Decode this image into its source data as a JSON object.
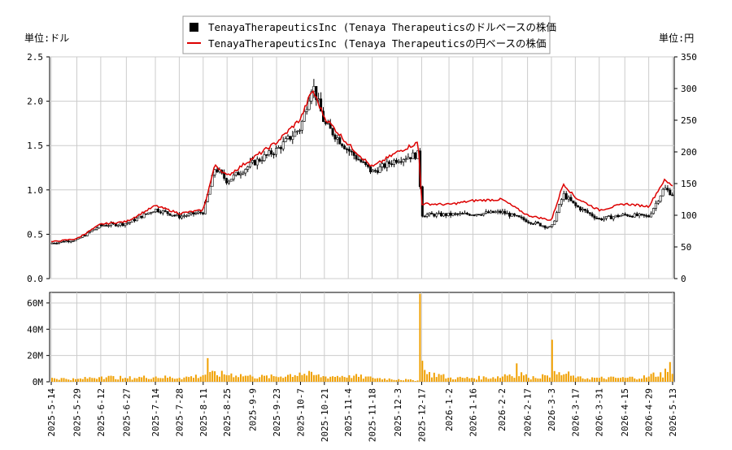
{
  "chart_data": [
    {
      "type": "candlestick",
      "title": "",
      "legend": {
        "placement": "top-center",
        "entries": [
          "TenayaTherapeuticsInc (Tenaya Therapeuticsのドルベースの株価",
          "TenayaTherapeuticsInc (Tenaya Therapeuticsの円ベースの株価"
        ]
      },
      "y_left_label": "単位:ドル",
      "y_right_label": "単位:円",
      "y_left_ticks": [
        "0.0",
        "0.5",
        "1.0",
        "1.5",
        "2.0",
        "2.5"
      ],
      "y_right_ticks": [
        "0",
        "50",
        "100",
        "150",
        "200",
        "250",
        "300",
        "350"
      ],
      "ylim_left": [
        0,
        2.5
      ],
      "ylim_right": [
        0,
        350
      ],
      "grid": true,
      "x_ticks": [
        "2025-5-14",
        "2025-5-29",
        "2025-6-12",
        "2025-6-27",
        "2025-7-14",
        "2025-7-28",
        "2025-8-11",
        "2025-8-25",
        "2025-9-9",
        "2025-9-23",
        "2025-10-7",
        "2025-10-21",
        "2025-11-4",
        "2025-11-18",
        "2025-12-3",
        "2025-12-17",
        "2026-1-2",
        "2026-1-16",
        "2026-2-2",
        "2026-2-17",
        "2026-3-3",
        "2026-3-17",
        "2026-3-31",
        "2026-4-15",
        "2026-4-29",
        "2026-5-13"
      ],
      "series": [
        {
          "name": "TenayaTherapeuticsInc (Tenaya Therapeuticsのドルベースの株価",
          "axis": "left",
          "color": "#000000",
          "x": [
            "2025-5-14",
            "2025-5-29",
            "2025-6-12",
            "2025-6-27",
            "2025-7-14",
            "2025-7-28",
            "2025-8-11",
            "2025-8-18",
            "2025-8-25",
            "2025-9-9",
            "2025-9-23",
            "2025-10-7",
            "2025-10-14",
            "2025-10-21",
            "2025-11-4",
            "2025-11-18",
            "2025-12-3",
            "2025-12-15",
            "2025-12-17",
            "2026-1-2",
            "2026-1-16",
            "2026-2-2",
            "2026-2-17",
            "2026-3-3",
            "2026-3-10",
            "2026-3-17",
            "2026-3-31",
            "2026-4-15",
            "2026-4-29",
            "2026-5-8",
            "2026-5-13"
          ],
          "values": [
            0.4,
            0.44,
            0.6,
            0.62,
            0.78,
            0.7,
            0.75,
            1.25,
            1.1,
            1.3,
            1.45,
            1.7,
            2.2,
            1.75,
            1.45,
            1.2,
            1.35,
            1.4,
            0.72,
            0.72,
            0.73,
            0.75,
            0.65,
            0.57,
            0.95,
            0.82,
            0.67,
            0.72,
            0.7,
            1.02,
            0.95
          ]
        },
        {
          "name": "TenayaTherapeuticsInc (Tenaya Therapeuticsの円ベースの株価",
          "axis": "right",
          "color": "#dd0000",
          "x": [
            "2025-5-14",
            "2025-5-29",
            "2025-6-12",
            "2025-6-27",
            "2025-7-14",
            "2025-7-28",
            "2025-8-11",
            "2025-8-18",
            "2025-8-25",
            "2025-9-9",
            "2025-9-23",
            "2025-10-7",
            "2025-10-14",
            "2025-10-21",
            "2025-11-4",
            "2025-11-18",
            "2025-12-3",
            "2025-12-15",
            "2025-12-17",
            "2026-1-2",
            "2026-1-16",
            "2026-2-2",
            "2026-2-17",
            "2026-3-3",
            "2026-3-10",
            "2026-3-17",
            "2026-3-31",
            "2026-4-15",
            "2026-4-29",
            "2026-5-8",
            "2026-5-13"
          ],
          "values": [
            58,
            63,
            86,
            90,
            115,
            103,
            108,
            180,
            162,
            190,
            215,
            252,
            298,
            255,
            212,
            176,
            200,
            215,
            118,
            117,
            123,
            125,
            100,
            92,
            150,
            128,
            108,
            118,
            114,
            155,
            147
          ]
        }
      ]
    },
    {
      "type": "bar",
      "title": "",
      "y_ticks": [
        "0M",
        "20M",
        "40M",
        "60M"
      ],
      "ylim": [
        0,
        68
      ],
      "grid": true,
      "bar_color": "#f0a000",
      "series": [
        {
          "x": [
            "2025-5-14",
            "2025-5-29",
            "2025-6-12",
            "2025-6-27",
            "2025-7-14",
            "2025-7-28",
            "2025-8-11",
            "2025-8-13",
            "2025-8-18",
            "2025-9-9",
            "2025-9-23",
            "2025-10-7",
            "2025-10-21",
            "2025-11-4",
            "2025-11-18",
            "2025-12-3",
            "2025-12-15",
            "2025-12-16",
            "2025-12-17",
            "2025-12-19",
            "2026-1-2",
            "2026-1-16",
            "2026-2-2",
            "2026-2-10",
            "2026-2-17",
            "2026-2-27",
            "2026-3-3",
            "2026-3-4",
            "2026-3-17",
            "2026-3-31",
            "2026-4-15",
            "2026-4-29",
            "2026-5-8",
            "2026-5-11",
            "2026-5-13"
          ],
          "values": [
            3,
            2,
            4,
            3,
            4,
            3,
            5,
            18,
            8,
            4,
            4,
            7,
            4,
            5,
            3,
            2,
            1,
            67,
            16,
            9,
            3,
            3,
            4,
            14,
            3,
            5,
            32,
            12,
            3,
            3,
            3,
            4,
            10,
            15,
            6
          ]
        }
      ]
    }
  ]
}
